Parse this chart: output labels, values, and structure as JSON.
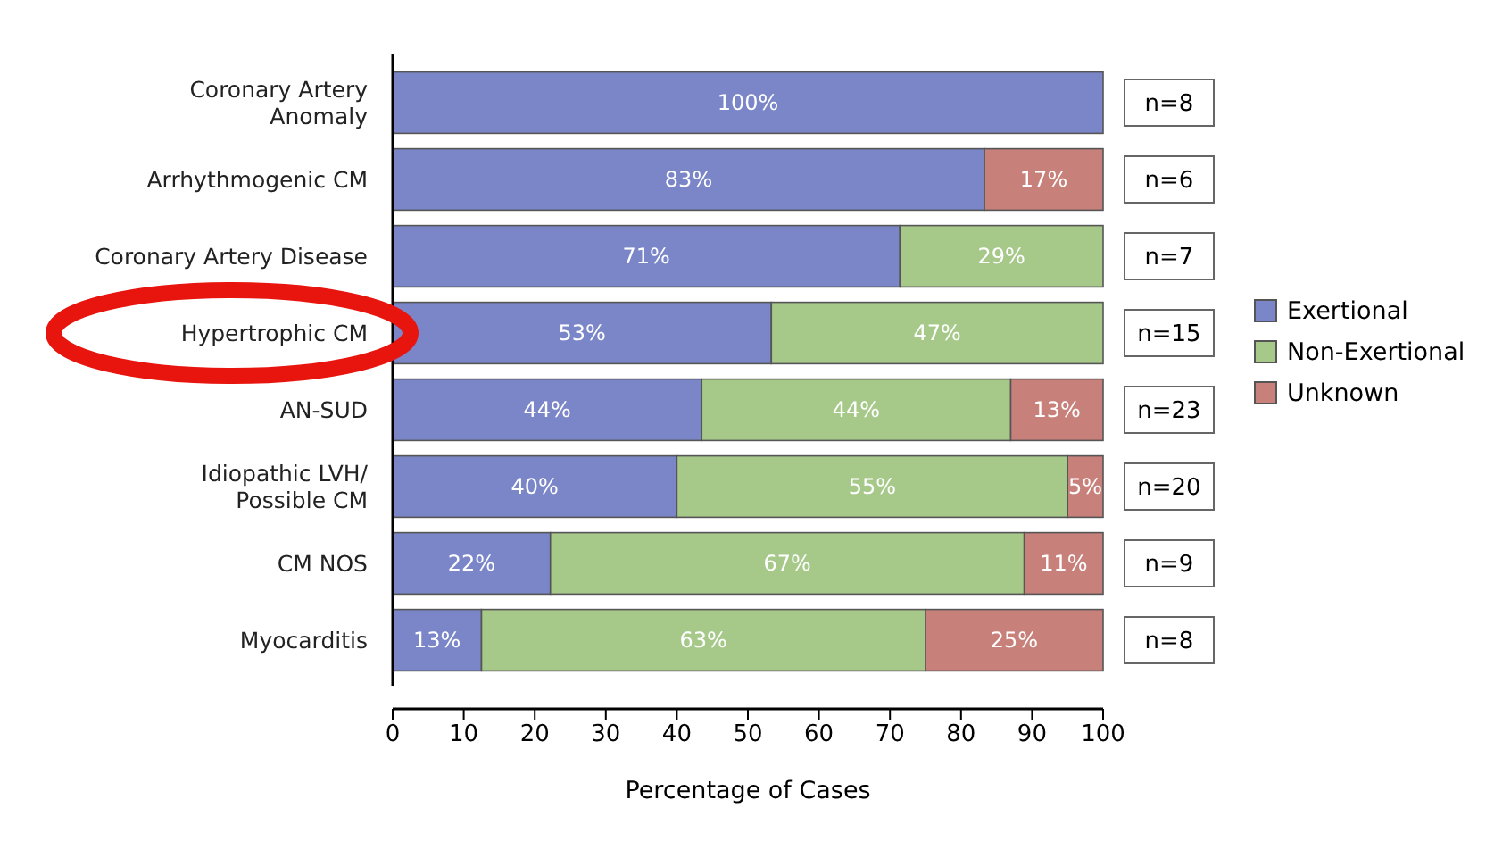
{
  "chart_data": {
    "type": "bar",
    "orientation": "horizontal",
    "stacked": true,
    "categories": [
      "Coronary Artery\nAnomaly",
      "Arrhythmogenic CM",
      "Coronary Artery Disease",
      "Hypertrophic CM",
      "AN-SUD",
      "Idiopathic LVH/\nPossible CM",
      "CM NOS",
      "Myocarditis"
    ],
    "series": [
      {
        "name": "Exertional",
        "color": "#7b86c8",
        "values": [
          100,
          83.3,
          71.4,
          53.3,
          43.5,
          40,
          22.2,
          12.5
        ],
        "value_labels": [
          "100%",
          "83%",
          "71%",
          "53%",
          "44%",
          "40%",
          "22%",
          "13%"
        ]
      },
      {
        "name": "Non-Exertional",
        "color": "#a6c98a",
        "values": [
          null,
          null,
          28.6,
          46.7,
          43.5,
          55,
          66.7,
          62.5
        ],
        "value_labels": [
          null,
          null,
          "29%",
          "47%",
          "44%",
          "55%",
          "67%",
          "63%"
        ]
      },
      {
        "name": "Unknown",
        "color": "#c8817a",
        "values": [
          null,
          16.7,
          null,
          null,
          13,
          5,
          11.1,
          25
        ],
        "value_labels": [
          null,
          "17%",
          null,
          null,
          "13%",
          "5%",
          "11%",
          "25%"
        ]
      }
    ],
    "xlim": [
      0,
      100
    ],
    "xticks": [
      0,
      10,
      20,
      30,
      40,
      50,
      60,
      70,
      80,
      90,
      100
    ],
    "xlabel": "Percentage of Cases",
    "legend": "right",
    "grid": false,
    "annotations": [
      "n=8",
      "n=6",
      "n=7",
      "n=15",
      "n=23",
      "n=20",
      "n=9",
      "n=8"
    ]
  }
}
